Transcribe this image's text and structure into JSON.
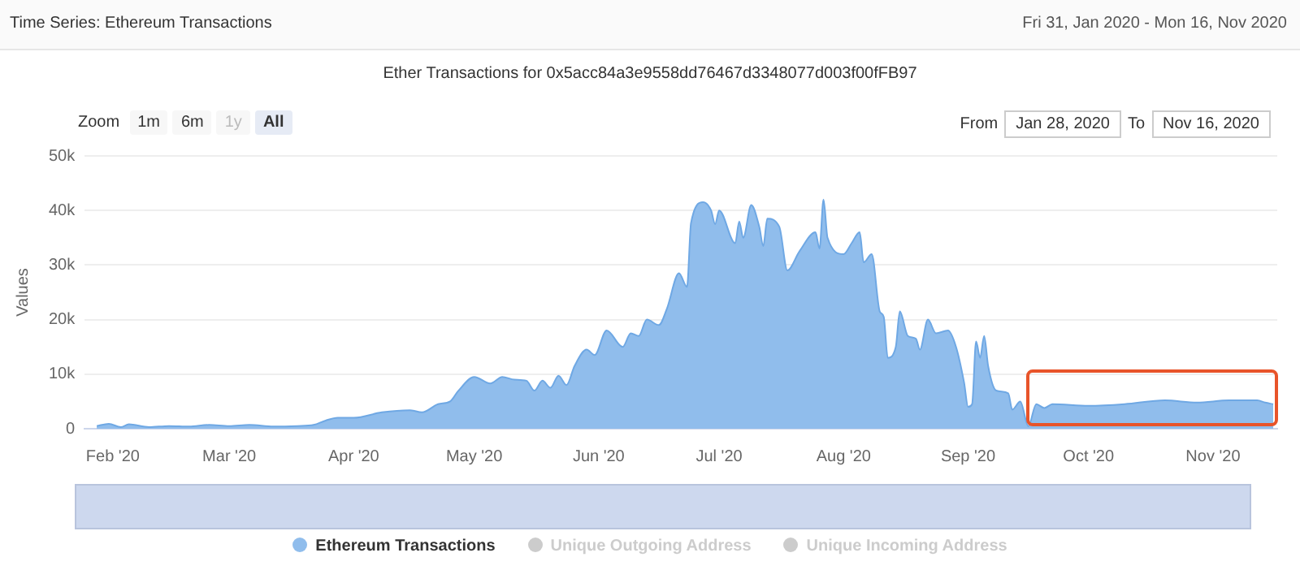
{
  "chart_data": {
    "type": "area",
    "title": "Ether Transactions for 0x5acc84a3e9558dd76467d3348077d003f00fFB97",
    "ylabel": "Values",
    "annotations": [
      "Time Series: Ethereum Transactions",
      "Fri 31, Jan 2020 - Mon 16, Nov 2020",
      "Zoom",
      "1m",
      "6m",
      "1y",
      "All",
      "From",
      "Jan 28, 2020",
      "To",
      "Nov 16, 2020",
      "Unique Outgoing Address",
      "Unique Incoming Address"
    ],
    "x": [
      "2020-01-28",
      "2020-01-31",
      "2020-02-03",
      "2020-02-05",
      "2020-02-10",
      "2020-02-15",
      "2020-02-20",
      "2020-02-25",
      "2020-03-01",
      "2020-03-06",
      "2020-03-12",
      "2020-03-18",
      "2020-03-22",
      "2020-03-25",
      "2020-03-28",
      "2020-04-01",
      "2020-04-08",
      "2020-04-15",
      "2020-04-18",
      "2020-04-22",
      "2020-04-25",
      "2020-04-27",
      "2020-05-01",
      "2020-05-05",
      "2020-05-08",
      "2020-05-11",
      "2020-05-14",
      "2020-05-16",
      "2020-05-18",
      "2020-05-20",
      "2020-05-22",
      "2020-05-24",
      "2020-05-26",
      "2020-05-29",
      "2020-05-31",
      "2020-06-03",
      "2020-06-07",
      "2020-06-09",
      "2020-06-11",
      "2020-06-13",
      "2020-06-16",
      "2020-06-18",
      "2020-06-21",
      "2020-06-23",
      "2020-06-24",
      "2020-06-27",
      "2020-06-29",
      "2020-06-30",
      "2020-07-01",
      "2020-07-05",
      "2020-07-06",
      "2020-07-07",
      "2020-07-09",
      "2020-07-11",
      "2020-07-12",
      "2020-07-13",
      "2020-07-16",
      "2020-07-18",
      "2020-07-21",
      "2020-07-25",
      "2020-07-26",
      "2020-07-27",
      "2020-07-28",
      "2020-08-01",
      "2020-08-03",
      "2020-08-05",
      "2020-08-06",
      "2020-08-08",
      "2020-08-10",
      "2020-08-11",
      "2020-08-12",
      "2020-08-14",
      "2020-08-15",
      "2020-08-17",
      "2020-08-19",
      "2020-08-20",
      "2020-08-22",
      "2020-08-24",
      "2020-08-27",
      "2020-08-29",
      "2020-08-31",
      "2020-09-01",
      "2020-09-02",
      "2020-09-03",
      "2020-09-04",
      "2020-09-05",
      "2020-09-06",
      "2020-09-08",
      "2020-09-11",
      "2020-09-12",
      "2020-09-14",
      "2020-09-16",
      "2020-09-18",
      "2020-09-20",
      "2020-09-22",
      "2020-10-01",
      "2020-10-10",
      "2020-10-20",
      "2020-10-28",
      "2020-11-05",
      "2020-11-12",
      "2020-11-14",
      "2020-11-16"
    ],
    "series": [
      {
        "name": "Ethereum Transactions",
        "color": "#90bdec",
        "values": [
          500,
          900,
          300,
          800,
          300,
          500,
          400,
          700,
          500,
          700,
          400,
          500,
          700,
          1500,
          2000,
          2000,
          3000,
          3400,
          3000,
          4500,
          5000,
          6900,
          9500,
          8300,
          9500,
          9000,
          8800,
          7000,
          8800,
          7500,
          9700,
          8000,
          11500,
          14500,
          13500,
          18000,
          15000,
          17500,
          17000,
          20000,
          19000,
          22000,
          28500,
          26000,
          37700,
          41500,
          40000,
          37500,
          40000,
          34000,
          38000,
          35000,
          41000,
          37000,
          33500,
          38500,
          37000,
          29000,
          32500,
          36000,
          33000,
          42000,
          35000,
          32000,
          34000,
          36000,
          30500,
          32000,
          21500,
          20500,
          13000,
          15000,
          21500,
          17000,
          16500,
          14500,
          20000,
          17500,
          18000,
          15000,
          8500,
          4000,
          4500,
          16000,
          13000,
          17000,
          11500,
          7000,
          6500,
          3500,
          5000,
          500,
          4500,
          3800,
          4500,
          4200,
          4500,
          5200,
          4800,
          5200,
          5200,
          4800,
          4500
        ]
      }
    ],
    "xlim": [
      "2020-01-25",
      "2020-11-17"
    ],
    "xticks": [
      {
        "value": "2020-02-01",
        "label": "Feb '20"
      },
      {
        "value": "2020-03-01",
        "label": "Mar '20"
      },
      {
        "value": "2020-04-01",
        "label": "Apr '20"
      },
      {
        "value": "2020-05-01",
        "label": "May '20"
      },
      {
        "value": "2020-06-01",
        "label": "Jun '20"
      },
      {
        "value": "2020-07-01",
        "label": "Jul '20"
      },
      {
        "value": "2020-08-01",
        "label": "Aug '20"
      },
      {
        "value": "2020-09-01",
        "label": "Sep '20"
      },
      {
        "value": "2020-10-01",
        "label": "Oct '20"
      },
      {
        "value": "2020-11-01",
        "label": "Nov '20"
      }
    ],
    "ylim": [
      0,
      50000
    ],
    "yticks": [
      0,
      {
        "value": 10000,
        "label": "10k"
      },
      {
        "value": 20000,
        "label": "20k"
      },
      {
        "value": 30000,
        "label": "30k"
      },
      {
        "value": 40000,
        "label": "40k"
      },
      {
        "value": 50000,
        "label": "50k"
      }
    ],
    "grid": "y",
    "legend": "bottom",
    "marker": "none"
  }
}
